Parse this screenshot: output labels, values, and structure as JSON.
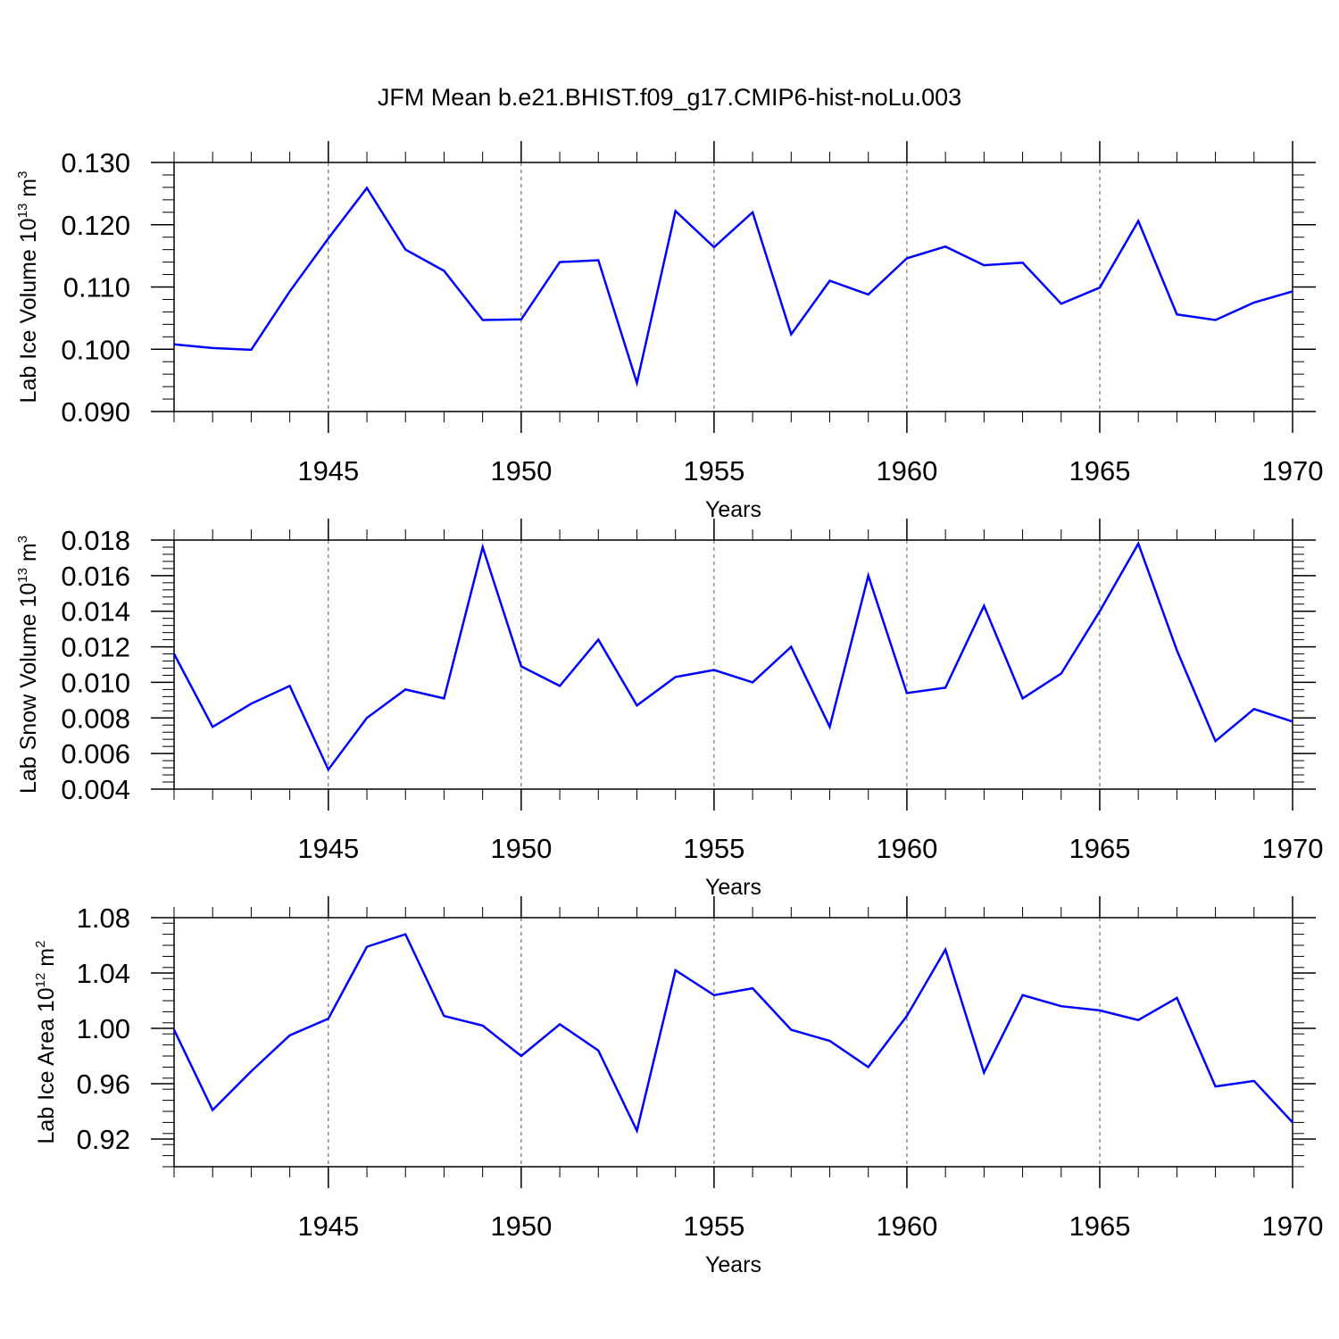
{
  "title": "JFM Mean b.e21.BHIST.f09_g17.CMIP6-hist-noLu.003",
  "chart_data": [
    {
      "type": "line",
      "ylabel": "Lab Ice Volume 10",
      "ylabel_sup": "13",
      "ylabel_unit": " m",
      "ylabel_unit_sup": "3",
      "xlabel": "Years",
      "xlim": [
        1941,
        1970
      ],
      "ylim": [
        0.09,
        0.13
      ],
      "yticks": [
        0.09,
        0.1,
        0.11,
        0.12,
        0.13
      ],
      "ytick_labels": [
        "0.090",
        "0.100",
        "0.110",
        "0.120",
        "0.130"
      ],
      "xticks": [
        1945,
        1950,
        1955,
        1960,
        1965,
        1970
      ],
      "xtick_labels": [
        "1945",
        "1950",
        "1955",
        "1960",
        "1965",
        "1970"
      ],
      "grid": "dashed vertical at major x ticks",
      "color": "#0000ff",
      "x": [
        1941,
        1942,
        1943,
        1944,
        1945,
        1946,
        1947,
        1948,
        1949,
        1950,
        1951,
        1952,
        1953,
        1954,
        1955,
        1956,
        1957,
        1958,
        1959,
        1960,
        1961,
        1962,
        1963,
        1964,
        1965,
        1966,
        1967,
        1968,
        1969,
        1970
      ],
      "y": [
        0.1008,
        0.1002,
        0.0999,
        0.1093,
        0.1178,
        0.1259,
        0.116,
        0.1126,
        0.1047,
        0.1048,
        0.114,
        0.1143,
        0.0946,
        0.1222,
        0.1164,
        0.122,
        0.1024,
        0.111,
        0.1088,
        0.1146,
        0.1165,
        0.1135,
        0.1139,
        0.1073,
        0.1099,
        0.1206,
        0.1056,
        0.1047,
        0.1075,
        0.1093
      ]
    },
    {
      "type": "line",
      "ylabel": "Lab Snow Volume 10",
      "ylabel_sup": "13",
      "ylabel_unit": " m",
      "ylabel_unit_sup": "3",
      "xlabel": "Years",
      "xlim": [
        1941,
        1970
      ],
      "ylim": [
        0.004,
        0.018
      ],
      "yticks": [
        0.004,
        0.006,
        0.008,
        0.01,
        0.012,
        0.014,
        0.016,
        0.018
      ],
      "ytick_labels": [
        "0.004",
        "0.006",
        "0.008",
        "0.010",
        "0.012",
        "0.014",
        "0.016",
        "0.018"
      ],
      "xticks": [
        1945,
        1950,
        1955,
        1960,
        1965,
        1970
      ],
      "xtick_labels": [
        "1945",
        "1950",
        "1955",
        "1960",
        "1965",
        "1970"
      ],
      "grid": "dashed vertical at major x ticks",
      "color": "#0000ff",
      "x": [
        1941,
        1942,
        1943,
        1944,
        1945,
        1946,
        1947,
        1948,
        1949,
        1950,
        1951,
        1952,
        1953,
        1954,
        1955,
        1956,
        1957,
        1958,
        1959,
        1960,
        1961,
        1962,
        1963,
        1964,
        1965,
        1966,
        1967,
        1968,
        1969,
        1970
      ],
      "y": [
        0.0116,
        0.0075,
        0.0088,
        0.0098,
        0.0051,
        0.008,
        0.0096,
        0.0091,
        0.0176,
        0.0109,
        0.0098,
        0.0124,
        0.0087,
        0.0103,
        0.0107,
        0.01,
        0.012,
        0.0075,
        0.016,
        0.0094,
        0.0097,
        0.0143,
        0.0091,
        0.0105,
        0.014,
        0.0178,
        0.0118,
        0.0067,
        0.0085,
        0.0078
      ]
    },
    {
      "type": "line",
      "ylabel": "Lab Ice Area 10",
      "ylabel_sup": "12",
      "ylabel_unit": " m",
      "ylabel_unit_sup": "2",
      "xlabel": "Years",
      "xlim": [
        1941,
        1970
      ],
      "ylim": [
        0.9,
        1.08
      ],
      "yticks": [
        0.92,
        0.96,
        1.0,
        1.04,
        1.08
      ],
      "ytick_labels": [
        "0.92",
        "0.96",
        "1.00",
        "1.04",
        "1.08"
      ],
      "xticks": [
        1945,
        1950,
        1955,
        1960,
        1965,
        1970
      ],
      "xtick_labels": [
        "1945",
        "1950",
        "1955",
        "1960",
        "1965",
        "1970"
      ],
      "grid": "dashed vertical at major x ticks",
      "color": "#0000ff",
      "x": [
        1941,
        1942,
        1943,
        1944,
        1945,
        1946,
        1947,
        1948,
        1949,
        1950,
        1951,
        1952,
        1953,
        1954,
        1955,
        1956,
        1957,
        1958,
        1959,
        1960,
        1961,
        1962,
        1963,
        1964,
        1965,
        1966,
        1967,
        1968,
        1969,
        1970
      ],
      "y": [
        0.999,
        0.941,
        0.969,
        0.995,
        1.007,
        1.059,
        1.068,
        1.009,
        1.002,
        0.98,
        1.003,
        0.984,
        0.926,
        1.042,
        1.024,
        1.029,
        0.999,
        0.991,
        0.972,
        1.009,
        1.057,
        0.968,
        1.024,
        1.016,
        1.013,
        1.006,
        1.022,
        0.958,
        0.962,
        0.932
      ]
    }
  ]
}
